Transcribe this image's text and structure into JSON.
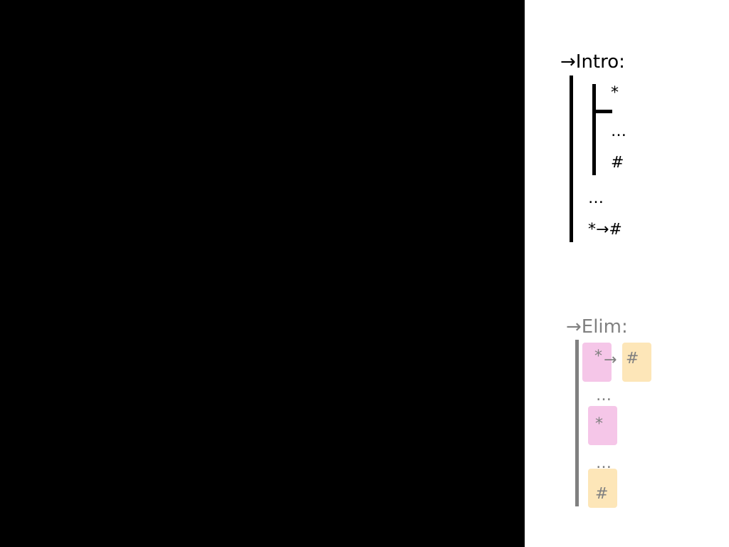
{
  "colors": {
    "slide_background": "#ffffff",
    "blank_area": "#000000",
    "intro_text": "#000000",
    "elim_text": "#808080",
    "antecedent_highlight": "#f5c6e8",
    "consequent_highlight": "#fde6b8"
  },
  "intro": {
    "title": "→Intro:",
    "assumption": "*",
    "inner_dots": "…",
    "derived": "#",
    "outer_dots": "…",
    "conclusion": "*→#"
  },
  "elim": {
    "title": "→Elim:",
    "implication_antecedent": "*",
    "implication_arrow": "→",
    "implication_consequent": "#",
    "dots_1": "…",
    "antecedent_line": "*",
    "dots_2": "…",
    "conclusion": "#"
  }
}
